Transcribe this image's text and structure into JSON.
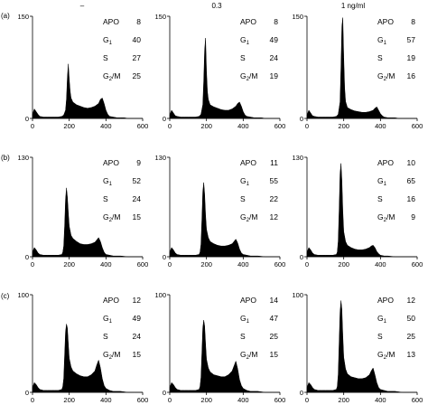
{
  "column_headers": [
    "–",
    "0.3",
    "1 ng/ml"
  ],
  "row_labels": [
    "(a)",
    "(b)",
    "(c)"
  ],
  "stat_labels": {
    "apo": "APO",
    "g1": {
      "base": "G",
      "sub": "1"
    },
    "s": "S",
    "g2m": {
      "base": "G",
      "sub": "2",
      "tail": "/M"
    }
  },
  "chart_data": [
    {
      "type": "area",
      "row": "(a)",
      "column": "–",
      "ylim": [
        0,
        150
      ],
      "xlim": [
        0,
        600
      ],
      "x_ticks": [
        "0",
        "200",
        "400",
        "600"
      ],
      "y_ticks": [
        "0",
        "150"
      ],
      "stats": {
        "APO": 8,
        "G1": 40,
        "S": 27,
        "G2/M": 25
      },
      "x": [
        0,
        10,
        20,
        30,
        40,
        60,
        80,
        100,
        120,
        140,
        160,
        170,
        180,
        185,
        190,
        195,
        200,
        205,
        210,
        220,
        240,
        260,
        280,
        300,
        320,
        340,
        360,
        370,
        380,
        390,
        400,
        410,
        420,
        440,
        460,
        480,
        500,
        520,
        560,
        600
      ],
      "values": [
        6,
        14,
        10,
        6,
        3,
        2,
        2,
        2,
        2,
        2,
        3,
        5,
        12,
        28,
        60,
        80,
        58,
        40,
        30,
        24,
        20,
        18,
        16,
        15,
        16,
        18,
        22,
        28,
        30,
        22,
        12,
        6,
        3,
        2,
        1,
        1,
        1,
        0,
        0,
        0
      ]
    },
    {
      "type": "area",
      "row": "(a)",
      "column": "0.3",
      "ylim": [
        0,
        150
      ],
      "xlim": [
        0,
        600
      ],
      "x_ticks": [
        "0",
        "200",
        "400",
        "600"
      ],
      "y_ticks": [
        "0",
        "150"
      ],
      "stats": {
        "APO": 8,
        "G1": 49,
        "S": 24,
        "G2/M": 19
      },
      "x": [
        0,
        10,
        20,
        30,
        40,
        60,
        80,
        100,
        120,
        140,
        160,
        170,
        180,
        185,
        190,
        195,
        200,
        205,
        210,
        220,
        240,
        260,
        280,
        300,
        320,
        340,
        360,
        370,
        380,
        390,
        400,
        410,
        420,
        440,
        460,
        480,
        500,
        520,
        560,
        600
      ],
      "values": [
        5,
        12,
        8,
        4,
        3,
        2,
        2,
        2,
        2,
        2,
        3,
        6,
        20,
        55,
        100,
        118,
        70,
        40,
        28,
        20,
        17,
        15,
        13,
        12,
        12,
        14,
        18,
        22,
        24,
        18,
        10,
        5,
        3,
        2,
        1,
        1,
        1,
        0,
        0,
        0
      ]
    },
    {
      "type": "area",
      "row": "(a)",
      "column": "1 ng/ml",
      "ylim": [
        0,
        150
      ],
      "xlim": [
        0,
        600
      ],
      "x_ticks": [
        "0",
        "200",
        "400",
        "600"
      ],
      "y_ticks": [
        "0",
        "150"
      ],
      "stats": {
        "APO": 8,
        "G1": 57,
        "S": 19,
        "G2/M": 16
      },
      "x": [
        0,
        10,
        20,
        30,
        40,
        60,
        80,
        100,
        120,
        140,
        160,
        170,
        180,
        185,
        190,
        195,
        200,
        205,
        210,
        220,
        240,
        260,
        280,
        300,
        320,
        340,
        360,
        370,
        380,
        390,
        400,
        410,
        420,
        440,
        460,
        480,
        500,
        520,
        560,
        600
      ],
      "values": [
        5,
        12,
        8,
        4,
        3,
        2,
        2,
        2,
        2,
        2,
        3,
        6,
        24,
        75,
        135,
        148,
        90,
        45,
        25,
        16,
        13,
        11,
        10,
        9,
        9,
        10,
        12,
        15,
        17,
        12,
        7,
        4,
        2,
        1,
        1,
        1,
        0,
        0,
        0,
        0
      ]
    },
    {
      "type": "area",
      "row": "(b)",
      "column": "–",
      "ylim": [
        0,
        130
      ],
      "xlim": [
        0,
        600
      ],
      "x_ticks": [
        "0",
        "200",
        "400",
        "600"
      ],
      "y_ticks": [
        "0",
        "130"
      ],
      "stats": {
        "APO": 9,
        "G1": 52,
        "S": 24,
        "G2/M": 15
      },
      "x": [
        0,
        10,
        20,
        30,
        40,
        60,
        80,
        100,
        120,
        140,
        160,
        165,
        170,
        175,
        180,
        185,
        190,
        195,
        200,
        210,
        220,
        240,
        260,
        280,
        300,
        320,
        340,
        350,
        360,
        370,
        380,
        390,
        400,
        420,
        440,
        480,
        520,
        560,
        600
      ],
      "values": [
        6,
        12,
        9,
        5,
        3,
        2,
        2,
        2,
        2,
        2,
        3,
        6,
        14,
        40,
        75,
        90,
        78,
        58,
        40,
        28,
        24,
        20,
        17,
        16,
        16,
        17,
        19,
        22,
        25,
        20,
        12,
        6,
        3,
        2,
        1,
        1,
        0,
        0,
        0
      ]
    },
    {
      "type": "area",
      "row": "(b)",
      "column": "0.3",
      "ylim": [
        0,
        130
      ],
      "xlim": [
        0,
        600
      ],
      "x_ticks": [
        "0",
        "200",
        "400",
        "600"
      ],
      "y_ticks": [
        "0",
        "130"
      ],
      "stats": {
        "APO": 11,
        "G1": 55,
        "S": 22,
        "G2/M": 12
      },
      "x": [
        0,
        10,
        20,
        30,
        40,
        60,
        80,
        100,
        120,
        140,
        160,
        165,
        170,
        175,
        180,
        185,
        190,
        195,
        200,
        210,
        220,
        240,
        260,
        280,
        300,
        320,
        340,
        350,
        360,
        370,
        380,
        390,
        400,
        420,
        440,
        480,
        520,
        560,
        600
      ],
      "values": [
        6,
        12,
        9,
        5,
        3,
        2,
        2,
        2,
        2,
        2,
        3,
        6,
        16,
        48,
        85,
        97,
        82,
        55,
        36,
        25,
        20,
        17,
        15,
        14,
        14,
        15,
        17,
        20,
        23,
        18,
        10,
        5,
        3,
        2,
        1,
        1,
        0,
        0,
        0
      ]
    },
    {
      "type": "area",
      "row": "(b)",
      "column": "1 ng/ml",
      "ylim": [
        0,
        130
      ],
      "xlim": [
        0,
        600
      ],
      "x_ticks": [
        "0",
        "200",
        "400",
        "600"
      ],
      "y_ticks": [
        "0",
        "130"
      ],
      "stats": {
        "APO": 10,
        "G1": 65,
        "S": 16,
        "G2/M": 9
      },
      "x": [
        0,
        10,
        20,
        30,
        40,
        60,
        80,
        100,
        120,
        140,
        160,
        165,
        170,
        175,
        180,
        185,
        190,
        195,
        200,
        210,
        220,
        240,
        260,
        280,
        300,
        320,
        340,
        350,
        360,
        370,
        380,
        390,
        400,
        420,
        440,
        480,
        520,
        560,
        600
      ],
      "values": [
        6,
        12,
        9,
        5,
        3,
        2,
        2,
        2,
        2,
        2,
        3,
        6,
        20,
        60,
        108,
        122,
        100,
        60,
        33,
        20,
        15,
        12,
        10,
        9,
        9,
        10,
        12,
        14,
        15,
        12,
        7,
        4,
        2,
        1,
        1,
        0,
        0,
        0,
        0
      ]
    },
    {
      "type": "area",
      "row": "(c)",
      "column": "–",
      "ylim": [
        0,
        100
      ],
      "xlim": [
        0,
        600
      ],
      "x_ticks": [
        "0",
        "200",
        "400",
        "600"
      ],
      "y_ticks": [
        "0",
        "100"
      ],
      "stats": {
        "APO": 12,
        "G1": 49,
        "S": 24,
        "G2/M": 15
      },
      "x": [
        0,
        10,
        20,
        30,
        40,
        60,
        80,
        100,
        120,
        140,
        160,
        165,
        170,
        175,
        180,
        185,
        190,
        195,
        200,
        210,
        220,
        240,
        260,
        280,
        300,
        320,
        340,
        350,
        360,
        370,
        380,
        390,
        400,
        420,
        440,
        480,
        520,
        560,
        600
      ],
      "values": [
        5,
        10,
        8,
        5,
        3,
        2,
        2,
        2,
        2,
        2,
        3,
        6,
        14,
        38,
        62,
        70,
        66,
        50,
        35,
        26,
        22,
        19,
        17,
        16,
        16,
        18,
        22,
        28,
        33,
        25,
        14,
        7,
        4,
        2,
        1,
        1,
        0,
        0,
        0
      ]
    },
    {
      "type": "area",
      "row": "(c)",
      "column": "0.3",
      "ylim": [
        0,
        100
      ],
      "xlim": [
        0,
        600
      ],
      "x_ticks": [
        "0",
        "200",
        "400",
        "600"
      ],
      "y_ticks": [
        "0",
        "100"
      ],
      "stats": {
        "APO": 14,
        "G1": 47,
        "S": 25,
        "G2/M": 15
      },
      "x": [
        0,
        10,
        20,
        30,
        40,
        60,
        80,
        100,
        120,
        140,
        160,
        165,
        170,
        175,
        180,
        185,
        190,
        195,
        200,
        210,
        220,
        240,
        260,
        280,
        300,
        320,
        340,
        350,
        360,
        370,
        380,
        390,
        400,
        420,
        440,
        480,
        520,
        560,
        600
      ],
      "values": [
        5,
        10,
        8,
        5,
        3,
        2,
        2,
        2,
        2,
        2,
        3,
        6,
        15,
        40,
        66,
        74,
        68,
        50,
        34,
        25,
        21,
        18,
        17,
        16,
        16,
        18,
        22,
        27,
        32,
        24,
        13,
        7,
        4,
        2,
        1,
        1,
        0,
        0,
        0
      ]
    },
    {
      "type": "area",
      "row": "(c)",
      "column": "1 ng/ml",
      "ylim": [
        0,
        100
      ],
      "xlim": [
        0,
        600
      ],
      "x_ticks": [
        "0",
        "200",
        "400",
        "600"
      ],
      "y_ticks": [
        "0",
        "100"
      ],
      "stats": {
        "APO": 12,
        "G1": 50,
        "S": 25,
        "G2/M": 13
      },
      "x": [
        0,
        10,
        20,
        30,
        40,
        60,
        80,
        100,
        120,
        140,
        160,
        165,
        170,
        175,
        180,
        185,
        190,
        195,
        200,
        210,
        220,
        240,
        260,
        280,
        300,
        320,
        340,
        350,
        360,
        370,
        380,
        390,
        400,
        420,
        440,
        480,
        520,
        560,
        600
      ],
      "values": [
        5,
        10,
        8,
        5,
        3,
        2,
        2,
        2,
        2,
        2,
        3,
        6,
        18,
        50,
        82,
        94,
        85,
        58,
        36,
        24,
        19,
        16,
        15,
        14,
        14,
        15,
        18,
        22,
        25,
        18,
        10,
        5,
        3,
        2,
        1,
        1,
        0,
        0,
        0
      ]
    }
  ]
}
